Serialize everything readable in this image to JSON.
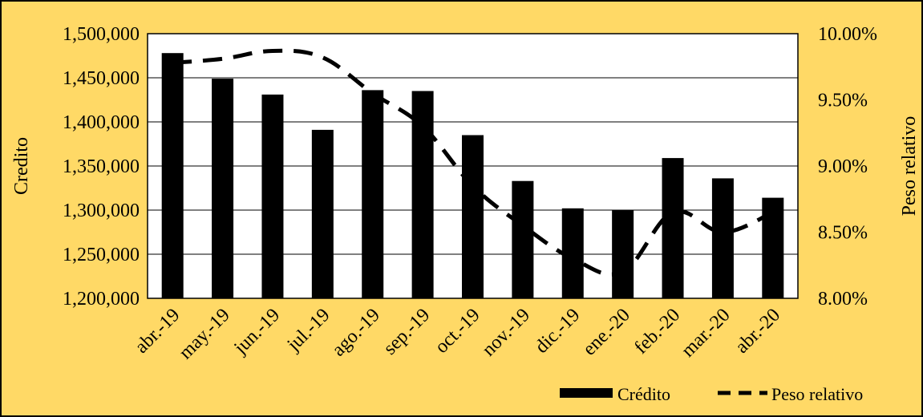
{
  "colors": {
    "background": "#FFD966",
    "plot_area": "#FFFFFF",
    "bars": "#000000",
    "line": "#000000",
    "grid": "#000000",
    "text": "#000000"
  },
  "chart_data": {
    "type": "bar",
    "title": "",
    "xlabel": "",
    "ylabel": "Credito",
    "y2label": "Peso relativo",
    "categories": [
      "abr.-19",
      "may.-19",
      "jun.-19",
      "jul.-19",
      "ago.-19",
      "sep.-19",
      "oct.-19",
      "nov.-19",
      "dic.-19",
      "ene.-20",
      "feb.-20",
      "mar.-20",
      "abr.-20"
    ],
    "series": [
      {
        "name": "Crédito",
        "type": "bar",
        "axis": "left",
        "values": [
          1478000,
          1449000,
          1431000,
          1391000,
          1436000,
          1435000,
          1385000,
          1333000,
          1302000,
          1300000,
          1359000,
          1336000,
          1314000
        ]
      },
      {
        "name": "Peso relativo",
        "type": "line",
        "style": "dashed",
        "axis": "right",
        "values": [
          9.78,
          9.81,
          9.87,
          9.82,
          9.55,
          9.3,
          8.85,
          8.55,
          8.3,
          8.2,
          8.65,
          8.5,
          8.65
        ]
      }
    ],
    "ylim": [
      1200000,
      1500000
    ],
    "y_ticks": [
      "1,200,000",
      "1,250,000",
      "1,300,000",
      "1,350,000",
      "1,400,000",
      "1,450,000",
      "1,500,000"
    ],
    "y2lim": [
      8.0,
      10.0
    ],
    "y2_ticks": [
      "8.00%",
      "8.50%",
      "9.00%",
      "9.50%",
      "10.00%"
    ],
    "grid": true,
    "legend_position": "bottom-right"
  }
}
